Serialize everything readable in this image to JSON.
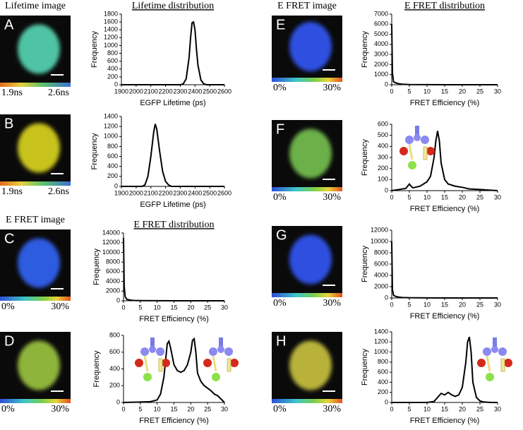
{
  "panels": [
    {
      "label": "A",
      "header": "Lifetime image",
      "scale": [
        "1.9ns",
        "2.6ns"
      ]
    },
    {
      "label": "B",
      "scale": [
        "1.9ns",
        "2.6ns"
      ]
    },
    {
      "label": "C",
      "header": "E FRET image",
      "scale": [
        "0%",
        "30%"
      ]
    },
    {
      "label": "D",
      "scale": [
        "0%",
        "30%"
      ]
    },
    {
      "label": "E",
      "header": "E FRET image",
      "scale": [
        "0%",
        "30%"
      ]
    },
    {
      "label": "F",
      "scale": [
        "0%",
        "30%"
      ]
    },
    {
      "label": "G",
      "scale": [
        "0%",
        "30%"
      ]
    },
    {
      "label": "H",
      "scale": [
        "0%",
        "30%"
      ]
    }
  ],
  "chart_data": [
    {
      "type": "line",
      "title": "Lifetime distribution",
      "xlabel": "EGFP Lifetime (ps)",
      "ylabel": "Frequency",
      "color": "#000000",
      "x": [
        1900,
        2300,
        2320,
        2340,
        2360,
        2370,
        2380,
        2390,
        2400,
        2410,
        2420,
        2440,
        2460,
        2480,
        2600
      ],
      "values": [
        0,
        0,
        20,
        150,
        700,
        1200,
        1580,
        1600,
        1400,
        900,
        500,
        120,
        20,
        0,
        0
      ],
      "xlim": [
        1900,
        2600
      ],
      "xticks": [
        1900,
        2000,
        2100,
        2200,
        2300,
        2400,
        2500,
        2600
      ],
      "ylim": [
        0,
        1800
      ],
      "yticks": [
        0,
        200,
        400,
        600,
        800,
        1000,
        1200,
        1400,
        1600,
        1800
      ]
    },
    {
      "type": "line",
      "xlabel": "EGFP Lifetime (ps)",
      "ylabel": "Frequency",
      "color": "#000000",
      "x": [
        1900,
        2040,
        2060,
        2080,
        2100,
        2120,
        2130,
        2140,
        2160,
        2180,
        2200,
        2220,
        2240,
        2600
      ],
      "values": [
        0,
        0,
        30,
        200,
        600,
        1100,
        1250,
        1150,
        700,
        300,
        100,
        30,
        0,
        0
      ],
      "xlim": [
        1900,
        2600
      ],
      "xticks": [
        1900,
        2000,
        2100,
        2200,
        2300,
        2400,
        2500,
        2600
      ],
      "ylim": [
        0,
        1400
      ],
      "yticks": [
        0,
        200,
        400,
        600,
        800,
        1000,
        1200,
        1400
      ]
    },
    {
      "type": "line",
      "title": "E FRET distribution",
      "xlabel": "FRET Efficiency (%)",
      "ylabel": "Frequency",
      "color": "#000000",
      "x": [
        0,
        0.2,
        0.5,
        1,
        2,
        3,
        5,
        10,
        20,
        30
      ],
      "values": [
        13000,
        3000,
        800,
        300,
        150,
        80,
        40,
        10,
        0,
        0
      ],
      "xlim": [
        0,
        30
      ],
      "xticks": [
        0,
        5,
        10,
        15,
        20,
        25,
        30
      ],
      "ylim": [
        0,
        14000
      ],
      "yticks": [
        0,
        2000,
        4000,
        6000,
        8000,
        10000,
        12000,
        14000
      ]
    },
    {
      "type": "line",
      "xlabel": "FRET Efficiency (%)",
      "ylabel": "Frequency",
      "color": "#000000",
      "x": [
        0,
        5,
        8,
        10,
        11,
        12,
        12.5,
        13,
        13.5,
        14,
        15,
        16,
        17,
        18,
        19,
        20,
        20.5,
        21,
        21.5,
        22,
        23,
        24,
        25,
        26,
        27,
        28,
        29,
        30
      ],
      "values": [
        0,
        5,
        10,
        30,
        100,
        300,
        500,
        700,
        730,
        650,
        450,
        380,
        360,
        380,
        450,
        600,
        740,
        760,
        600,
        350,
        250,
        200,
        170,
        140,
        100,
        80,
        40,
        0
      ],
      "xlim": [
        0,
        30
      ],
      "xticks": [
        0,
        5,
        10,
        15,
        20,
        25,
        30
      ],
      "ylim": [
        0,
        800
      ],
      "yticks": [
        0,
        200,
        400,
        600,
        800
      ]
    },
    {
      "type": "line",
      "title": "E FRET distribution",
      "xlabel": "FRET Efficiency (%)",
      "ylabel": "Frequency",
      "color": "#000000",
      "x": [
        0,
        0.2,
        0.5,
        1,
        2,
        3,
        5,
        10,
        30
      ],
      "values": [
        6000,
        1200,
        300,
        200,
        100,
        50,
        20,
        5,
        0
      ],
      "xlim": [
        0,
        30
      ],
      "xticks": [
        0,
        5,
        10,
        15,
        20,
        25,
        30
      ],
      "ylim": [
        0,
        7000
      ],
      "yticks": [
        0,
        1000,
        2000,
        3000,
        4000,
        5000,
        6000,
        7000
      ]
    },
    {
      "type": "line",
      "xlabel": "FRET Efficiency (%)",
      "ylabel": "Frequency",
      "color": "#000000",
      "x": [
        0,
        2,
        4,
        5,
        5.5,
        6,
        8,
        10,
        11,
        12,
        12.5,
        13,
        13.5,
        14,
        15,
        16,
        18,
        20,
        22,
        25,
        30
      ],
      "values": [
        0,
        10,
        20,
        60,
        40,
        25,
        40,
        80,
        130,
        300,
        450,
        540,
        450,
        250,
        100,
        60,
        40,
        30,
        15,
        10,
        0
      ],
      "xlim": [
        0,
        30
      ],
      "xticks": [
        0,
        5,
        10,
        15,
        20,
        25,
        30
      ],
      "ylim": [
        0,
        600
      ],
      "yticks": [
        0,
        100,
        200,
        300,
        400,
        500,
        600
      ]
    },
    {
      "type": "line",
      "xlabel": "FRET Efficiency (%)",
      "ylabel": "Frequency",
      "color": "#000000",
      "x": [
        0,
        0.2,
        0.5,
        1,
        2,
        3,
        5,
        10,
        30
      ],
      "values": [
        10000,
        1500,
        500,
        300,
        150,
        80,
        40,
        10,
        0
      ],
      "xlim": [
        0,
        30
      ],
      "xticks": [
        0,
        5,
        10,
        15,
        20,
        25,
        30
      ],
      "ylim": [
        0,
        12000
      ],
      "yticks": [
        0,
        2000,
        4000,
        6000,
        8000,
        10000,
        12000
      ]
    },
    {
      "type": "line",
      "xlabel": "FRET Efficiency (%)",
      "ylabel": "Frequency",
      "color": "#000000",
      "x": [
        0,
        10,
        12,
        13,
        14,
        15,
        16,
        17,
        18,
        19,
        20,
        21,
        21.5,
        22,
        22.5,
        23,
        24,
        25,
        26,
        28,
        30
      ],
      "values": [
        0,
        0,
        20,
        100,
        180,
        150,
        200,
        150,
        120,
        150,
        300,
        800,
        1200,
        1300,
        1000,
        400,
        100,
        30,
        10,
        0,
        0
      ],
      "xlim": [
        0,
        30
      ],
      "xticks": [
        0,
        5,
        10,
        15,
        20,
        25,
        30
      ],
      "ylim": [
        0,
        1400
      ],
      "yticks": [
        0,
        200,
        400,
        600,
        800,
        1000,
        1200,
        1400
      ]
    }
  ]
}
